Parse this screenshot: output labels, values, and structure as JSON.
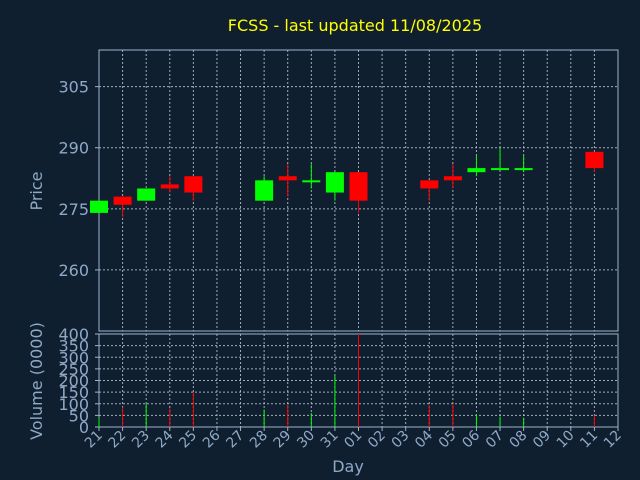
{
  "chart_data": [
    {
      "type": "candlestick",
      "title": "FCSS - last updated 11/08/2025",
      "ylabel": "Price",
      "ylim": [
        245,
        314
      ],
      "yticks": [
        260,
        275,
        290,
        305
      ],
      "categories": [
        "21",
        "22",
        "23",
        "24",
        "25",
        "26",
        "27",
        "28",
        "29",
        "30",
        "31",
        "01",
        "02",
        "03",
        "04",
        "05",
        "06",
        "07",
        "08",
        "09",
        "10",
        "11",
        "12"
      ],
      "grid": true,
      "up_color": "#00ff00",
      "down_color": "#ff0000",
      "candles": [
        {
          "day": "21",
          "open": 274,
          "high": 277,
          "low": 274,
          "close": 277
        },
        {
          "day": "22",
          "open": 278,
          "high": 278,
          "low": 273,
          "close": 276
        },
        {
          "day": "23",
          "open": 277,
          "high": 280,
          "low": 277,
          "close": 280
        },
        {
          "day": "24",
          "open": 281,
          "high": 283,
          "low": 279,
          "close": 280
        },
        {
          "day": "25",
          "open": 283,
          "high": 283,
          "low": 277,
          "close": 279
        },
        {
          "day": "28",
          "open": 277,
          "high": 283,
          "low": 277,
          "close": 282
        },
        {
          "day": "29",
          "open": 283,
          "high": 286,
          "low": 278,
          "close": 282
        },
        {
          "day": "30",
          "open": 282,
          "high": 286,
          "low": 280,
          "close": 282
        },
        {
          "day": "31",
          "open": 279,
          "high": 284,
          "low": 277,
          "close": 284
        },
        {
          "day": "01",
          "open": 284,
          "high": 284,
          "low": 274,
          "close": 277
        },
        {
          "day": "04",
          "open": 282,
          "high": 282,
          "low": 277,
          "close": 280
        },
        {
          "day": "05",
          "open": 283,
          "high": 286,
          "low": 280,
          "close": 282
        },
        {
          "day": "06",
          "open": 284,
          "high": 288,
          "low": 283,
          "close": 285
        },
        {
          "day": "07",
          "open": 285,
          "high": 290,
          "low": 285,
          "close": 285
        },
        {
          "day": "08",
          "open": 285,
          "high": 288,
          "low": 284,
          "close": 285
        },
        {
          "day": "11",
          "open": 289,
          "high": 289,
          "low": 284,
          "close": 285
        }
      ]
    },
    {
      "type": "bar",
      "xlabel": "Day",
      "ylabel": "Volume (0000)",
      "ylim": [
        0,
        400
      ],
      "yticks": [
        0,
        50,
        100,
        150,
        200,
        250,
        300,
        350,
        400
      ],
      "categories": [
        "21",
        "22",
        "23",
        "24",
        "25",
        "26",
        "27",
        "28",
        "29",
        "30",
        "31",
        "01",
        "02",
        "03",
        "04",
        "05",
        "06",
        "07",
        "08",
        "09",
        "10",
        "11",
        "12"
      ],
      "grid": true,
      "bars": [
        {
          "day": "21",
          "value": 40,
          "color": "#00ff00"
        },
        {
          "day": "22",
          "value": 85,
          "color": "#ff0000"
        },
        {
          "day": "23",
          "value": 100,
          "color": "#00ff00"
        },
        {
          "day": "24",
          "value": 80,
          "color": "#ff0000"
        },
        {
          "day": "25",
          "value": 150,
          "color": "#ff0000"
        },
        {
          "day": "28",
          "value": 75,
          "color": "#00ff00"
        },
        {
          "day": "29",
          "value": 95,
          "color": "#ff0000"
        },
        {
          "day": "30",
          "value": 60,
          "color": "#00ff00"
        },
        {
          "day": "31",
          "value": 220,
          "color": "#00ff00"
        },
        {
          "day": "01",
          "value": 400,
          "color": "#ff0000"
        },
        {
          "day": "04",
          "value": 95,
          "color": "#ff0000"
        },
        {
          "day": "05",
          "value": 100,
          "color": "#ff0000"
        },
        {
          "day": "06",
          "value": 55,
          "color": "#00ff00"
        },
        {
          "day": "07",
          "value": 45,
          "color": "#00ff00"
        },
        {
          "day": "08",
          "value": 40,
          "color": "#00ff00"
        },
        {
          "day": "11",
          "value": 50,
          "color": "#ff0000"
        }
      ]
    }
  ]
}
